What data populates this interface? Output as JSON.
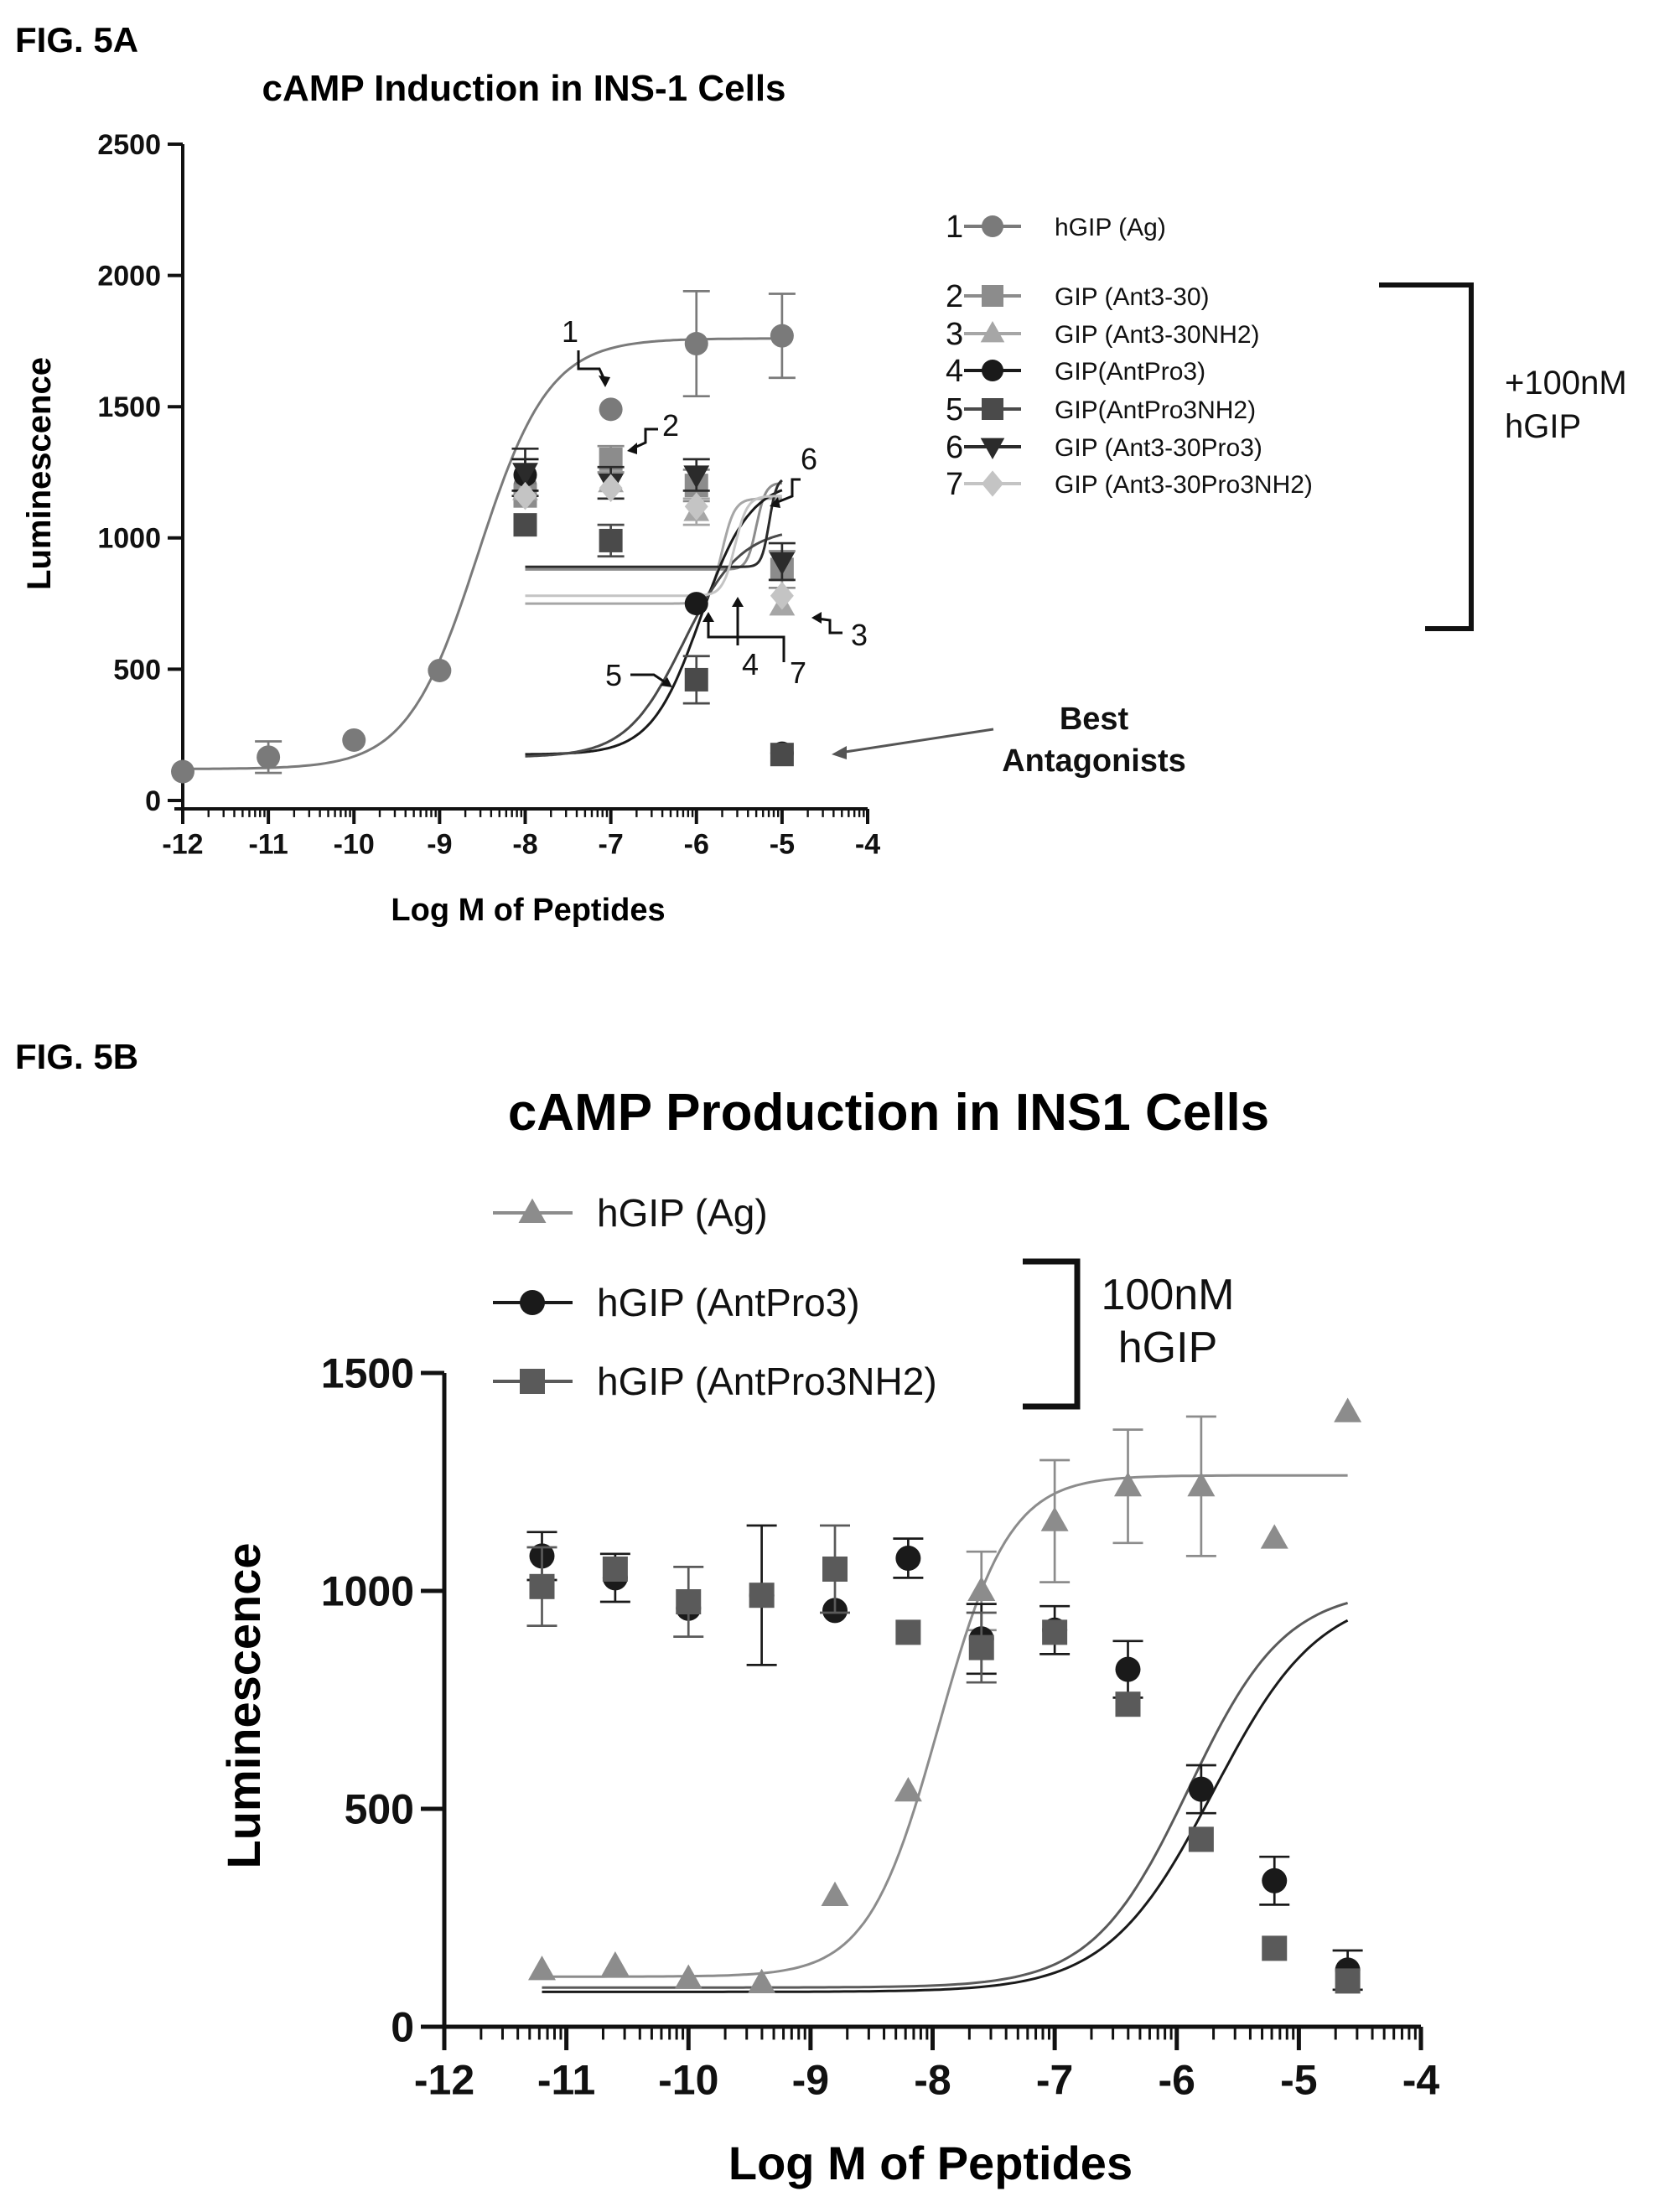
{
  "chart_data": [
    {
      "figure_label": "FIG. 5A",
      "type": "scatter",
      "title": "cAMP Induction in INS-1 Cells",
      "xlabel": "Log M of Peptides",
      "ylabel": "Luminescence",
      "xlim": [
        -12,
        -4
      ],
      "ylim": [
        0,
        2500
      ],
      "xticks": [
        "-12",
        "-11",
        "-10",
        "-9",
        "-8",
        "-7",
        "-6",
        "-5",
        "-4"
      ],
      "yticks": [
        "0",
        "500",
        "1000",
        "1500",
        "2000",
        "2500"
      ],
      "legend_placement": "right",
      "bracket_label": [
        "+100nM",
        "hGIP"
      ],
      "arrow_label": [
        "Best",
        "Antagonists"
      ],
      "series": [
        {
          "number": "1",
          "name": "hGIP (Ag)",
          "marker": "circle",
          "color": "#7a7a7a",
          "x": [
            -12,
            -11,
            -10,
            -9,
            -8,
            -7,
            -6,
            -5
          ],
          "y": [
            110,
            165,
            230,
            495,
            1200,
            1490,
            1740,
            1770
          ],
          "err": [
            0,
            60,
            0,
            0,
            0,
            0,
            200,
            160
          ],
          "fit": {
            "bottom": 120,
            "top": 1760,
            "ec50": -8.55,
            "hill": 1.05
          }
        },
        {
          "number": "2",
          "name": "GIP (Ant3-30)",
          "marker": "square",
          "color": "#8c8c8c",
          "x": [
            -8,
            -7,
            -6,
            -5
          ],
          "y": [
            1160,
            1300,
            1200,
            880
          ],
          "err": [
            0,
            50,
            60,
            70
          ],
          "fit": {
            "bottom": 880,
            "top": 1210,
            "ec50": -5.3,
            "hill": 8
          }
        },
        {
          "number": "3",
          "name": "GIP (Ant3-30NH2)",
          "marker": "triangle",
          "color": "#a6a6a6",
          "x": [
            -8,
            -7,
            -6,
            -5
          ],
          "y": [
            1180,
            1210,
            1100,
            740
          ],
          "err": [
            0,
            0,
            50,
            0
          ],
          "fit": {
            "bottom": 750,
            "top": 1150,
            "ec50": -5.7,
            "hill": 6
          }
        },
        {
          "number": "4",
          "name": "GIP(AntPro3)",
          "marker": "circle",
          "color": "#1a1a1a",
          "x": [
            -8,
            -6,
            -5
          ],
          "y": [
            1240,
            750,
            180
          ],
          "err": [
            60,
            0,
            0
          ],
          "fit": {
            "bottom": 175,
            "top": 1220,
            "ec50": -5.95,
            "hill": 1.5
          }
        },
        {
          "number": "5",
          "name": "GIP(AntPro3NH2)",
          "marker": "square",
          "color": "#4a4a4a",
          "x": [
            -8,
            -7,
            -6,
            -5
          ],
          "y": [
            1050,
            990,
            460,
            175
          ],
          "err": [
            0,
            60,
            90,
            0
          ],
          "fit": {
            "bottom": 165,
            "top": 1040,
            "ec50": -6.15,
            "hill": 1.3
          }
        },
        {
          "number": "6",
          "name": "GIP (Ant3-30Pro3)",
          "marker": "triangle-down",
          "color": "#2b2b2b",
          "x": [
            -8,
            -7,
            -6,
            -5
          ],
          "y": [
            1250,
            1210,
            1240,
            910
          ],
          "err": [
            90,
            60,
            60,
            70
          ],
          "fit": {
            "bottom": 890,
            "top": 1230,
            "ec50": -5.15,
            "hill": 10
          }
        },
        {
          "number": "7",
          "name": "GIP (Ant3-30Pro3NH2)",
          "marker": "diamond",
          "color": "#c4c4c4",
          "x": [
            -8,
            -7,
            -6,
            -5
          ],
          "y": [
            1160,
            1190,
            1120,
            780
          ],
          "err": [
            0,
            0,
            0,
            0
          ],
          "fit": {
            "bottom": 780,
            "top": 1160,
            "ec50": -5.55,
            "hill": 6
          }
        }
      ]
    },
    {
      "figure_label": "FIG. 5B",
      "type": "scatter",
      "title": "cAMP Production in INS1 Cells",
      "xlabel": "Log M of Peptides",
      "ylabel": "Luminescence",
      "xlim": [
        -12,
        -4
      ],
      "ylim": [
        0,
        1500
      ],
      "xticks": [
        "-12",
        "-11",
        "-10",
        "-9",
        "-8",
        "-7",
        "-6",
        "-5",
        "-4"
      ],
      "yticks": [
        "0",
        "500",
        "1000",
        "1500"
      ],
      "legend_placement": "top-left",
      "bracket_label": [
        "100nM",
        "hGIP"
      ],
      "series": [
        {
          "name": "hGIP (Ag)",
          "marker": "triangle",
          "color": "#8c8c8c",
          "x": [
            -11.2,
            -10.6,
            -10.0,
            -9.4,
            -8.8,
            -8.2,
            -7.6,
            -7.0,
            -6.4,
            -5.8,
            -5.2,
            -4.6
          ],
          "y": [
            130,
            140,
            110,
            100,
            300,
            540,
            1000,
            1160,
            1240,
            1240,
            1120,
            1410
          ],
          "err": [
            0,
            0,
            0,
            0,
            0,
            0,
            90,
            140,
            130,
            160,
            0,
            0
          ],
          "fit": {
            "bottom": 115,
            "top": 1265,
            "ec50": -7.95,
            "hill": 1.5,
            "xmin": -11.2,
            "xmax": -4.6
          }
        },
        {
          "name": "hGIP (AntPro3)",
          "marker": "circle",
          "color": "#1a1a1a",
          "x": [
            -11.2,
            -10.6,
            -10.0,
            -9.4,
            -8.8,
            -8.2,
            -7.6,
            -7.0,
            -6.4,
            -5.8,
            -5.2,
            -4.6
          ],
          "y": [
            1080,
            1030,
            960,
            990,
            955,
            1075,
            890,
            910,
            820,
            545,
            335,
            130
          ],
          "err": [
            55,
            55,
            0,
            160,
            0,
            45,
            80,
            55,
            65,
            55,
            55,
            45
          ],
          "fit": {
            "bottom": 80,
            "top": 1000,
            "ec50": -5.7,
            "hill": 1.0,
            "xmin": -11.2,
            "xmax": -4.6
          }
        },
        {
          "name": "hGIP (AntPro3NH2)",
          "marker": "square",
          "color": "#5a5a5a",
          "x": [
            -11.2,
            -10.6,
            -10.0,
            -9.4,
            -8.8,
            -8.2,
            -7.6,
            -7.0,
            -6.4,
            -5.8,
            -5.2,
            -4.6
          ],
          "y": [
            1010,
            1050,
            975,
            990,
            1050,
            905,
            870,
            905,
            740,
            430,
            180,
            105
          ],
          "err": [
            90,
            0,
            80,
            0,
            100,
            0,
            80,
            0,
            0,
            0,
            0,
            0
          ],
          "fit": {
            "bottom": 90,
            "top": 1005,
            "ec50": -5.9,
            "hill": 1.1,
            "xmin": -11.2,
            "xmax": -4.6
          }
        }
      ]
    }
  ]
}
